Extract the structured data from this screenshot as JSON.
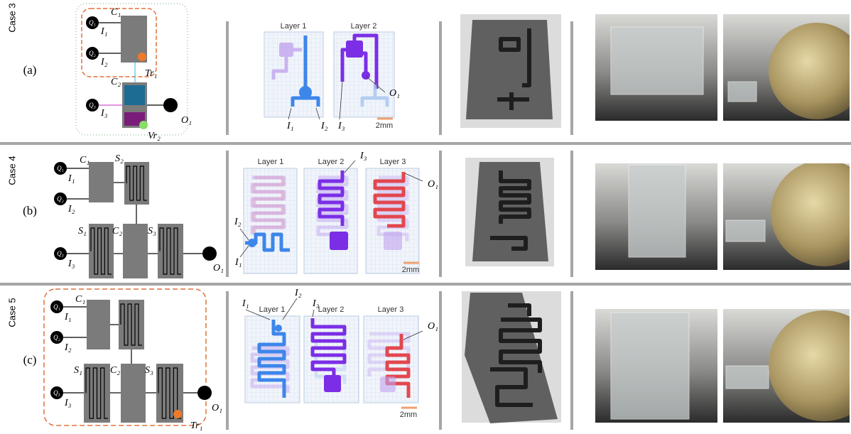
{
  "rows": [
    {
      "case": "Case 3",
      "panel": "(a)",
      "schematic": [
        "Q₁",
        "I₁",
        "C₁",
        "Q₂",
        "I₂",
        "Tr₁",
        "C₂",
        "Q₃",
        "I₃",
        "O₁",
        "Vr₂"
      ],
      "layers": [
        "Layer 1",
        "Layer 2"
      ],
      "ports": [
        "I₁",
        "I₂",
        "I₃",
        "O₁"
      ],
      "scale": "2mm"
    },
    {
      "case": "Case 4",
      "panel": "(b)",
      "schematic": [
        "Q₁",
        "I₁",
        "C₁",
        "S₂",
        "Q₂",
        "I₂",
        "S₁",
        "C₂",
        "S₃",
        "Q₃",
        "I₃",
        "O₁"
      ],
      "layers": [
        "Layer 1",
        "Layer 2",
        "Layer 3"
      ],
      "ports": [
        "I₂",
        "I₁",
        "I₃",
        "O₁"
      ],
      "scale": "2mm"
    },
    {
      "case": "Case 5",
      "panel": "(c)",
      "schematic": [
        "Q₁",
        "I₁",
        "C₁",
        "Q₂",
        "I₂",
        "S₁",
        "C₂",
        "S₃",
        "Q₃",
        "I₃",
        "O₁",
        "Tr₁"
      ],
      "layers": [
        "Layer 1",
        "Layer 2",
        "Layer 3"
      ],
      "ports": [
        "I₁",
        "I₂",
        "I₃",
        "O₁"
      ],
      "scale": "2mm"
    }
  ]
}
